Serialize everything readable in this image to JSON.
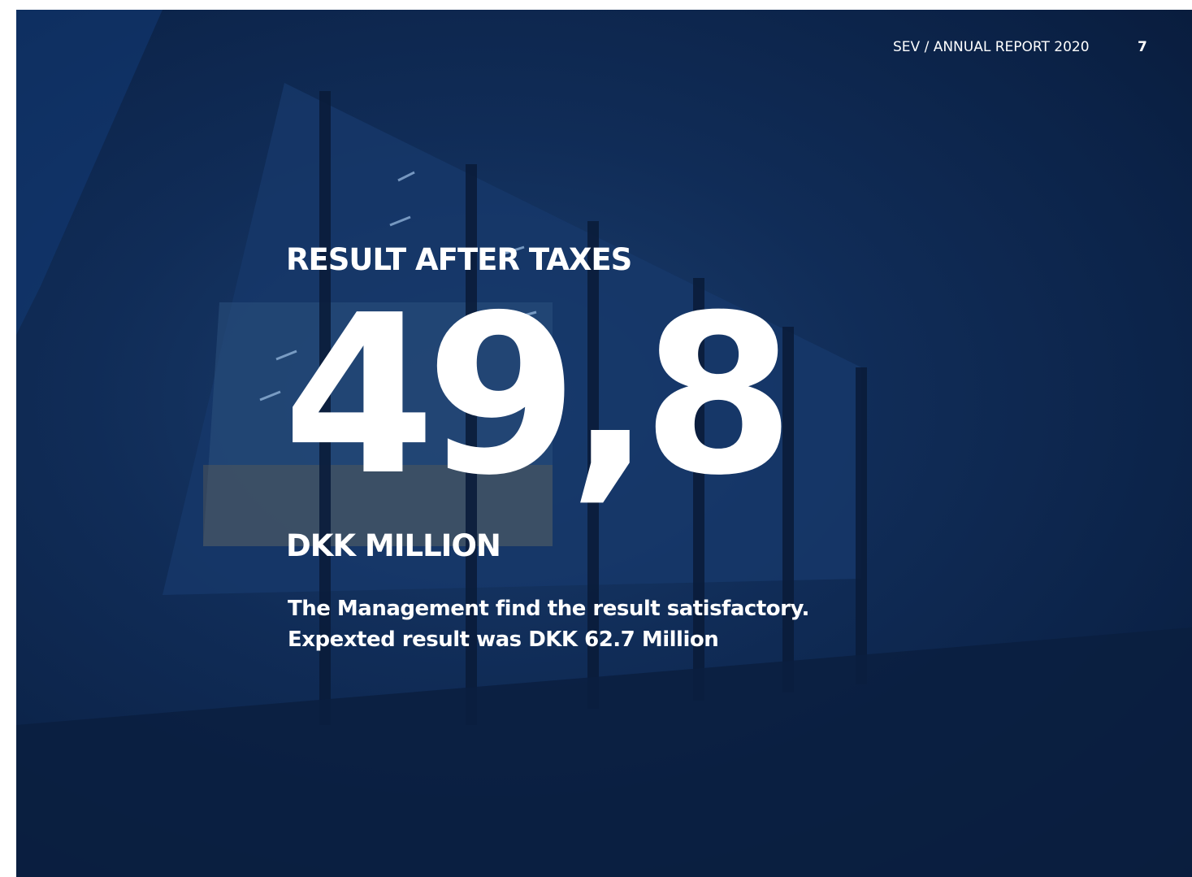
{
  "header": {
    "report": "SEV / ANNUAL REPORT 2020",
    "page": "7"
  },
  "headline": "RESULT AFTER TAXES",
  "figure": "49,8",
  "unit": "DKK MILLION",
  "body": [
    "The Management find the result satisfactory.",
    "Expexted result was DKK 62.7 Million"
  ]
}
